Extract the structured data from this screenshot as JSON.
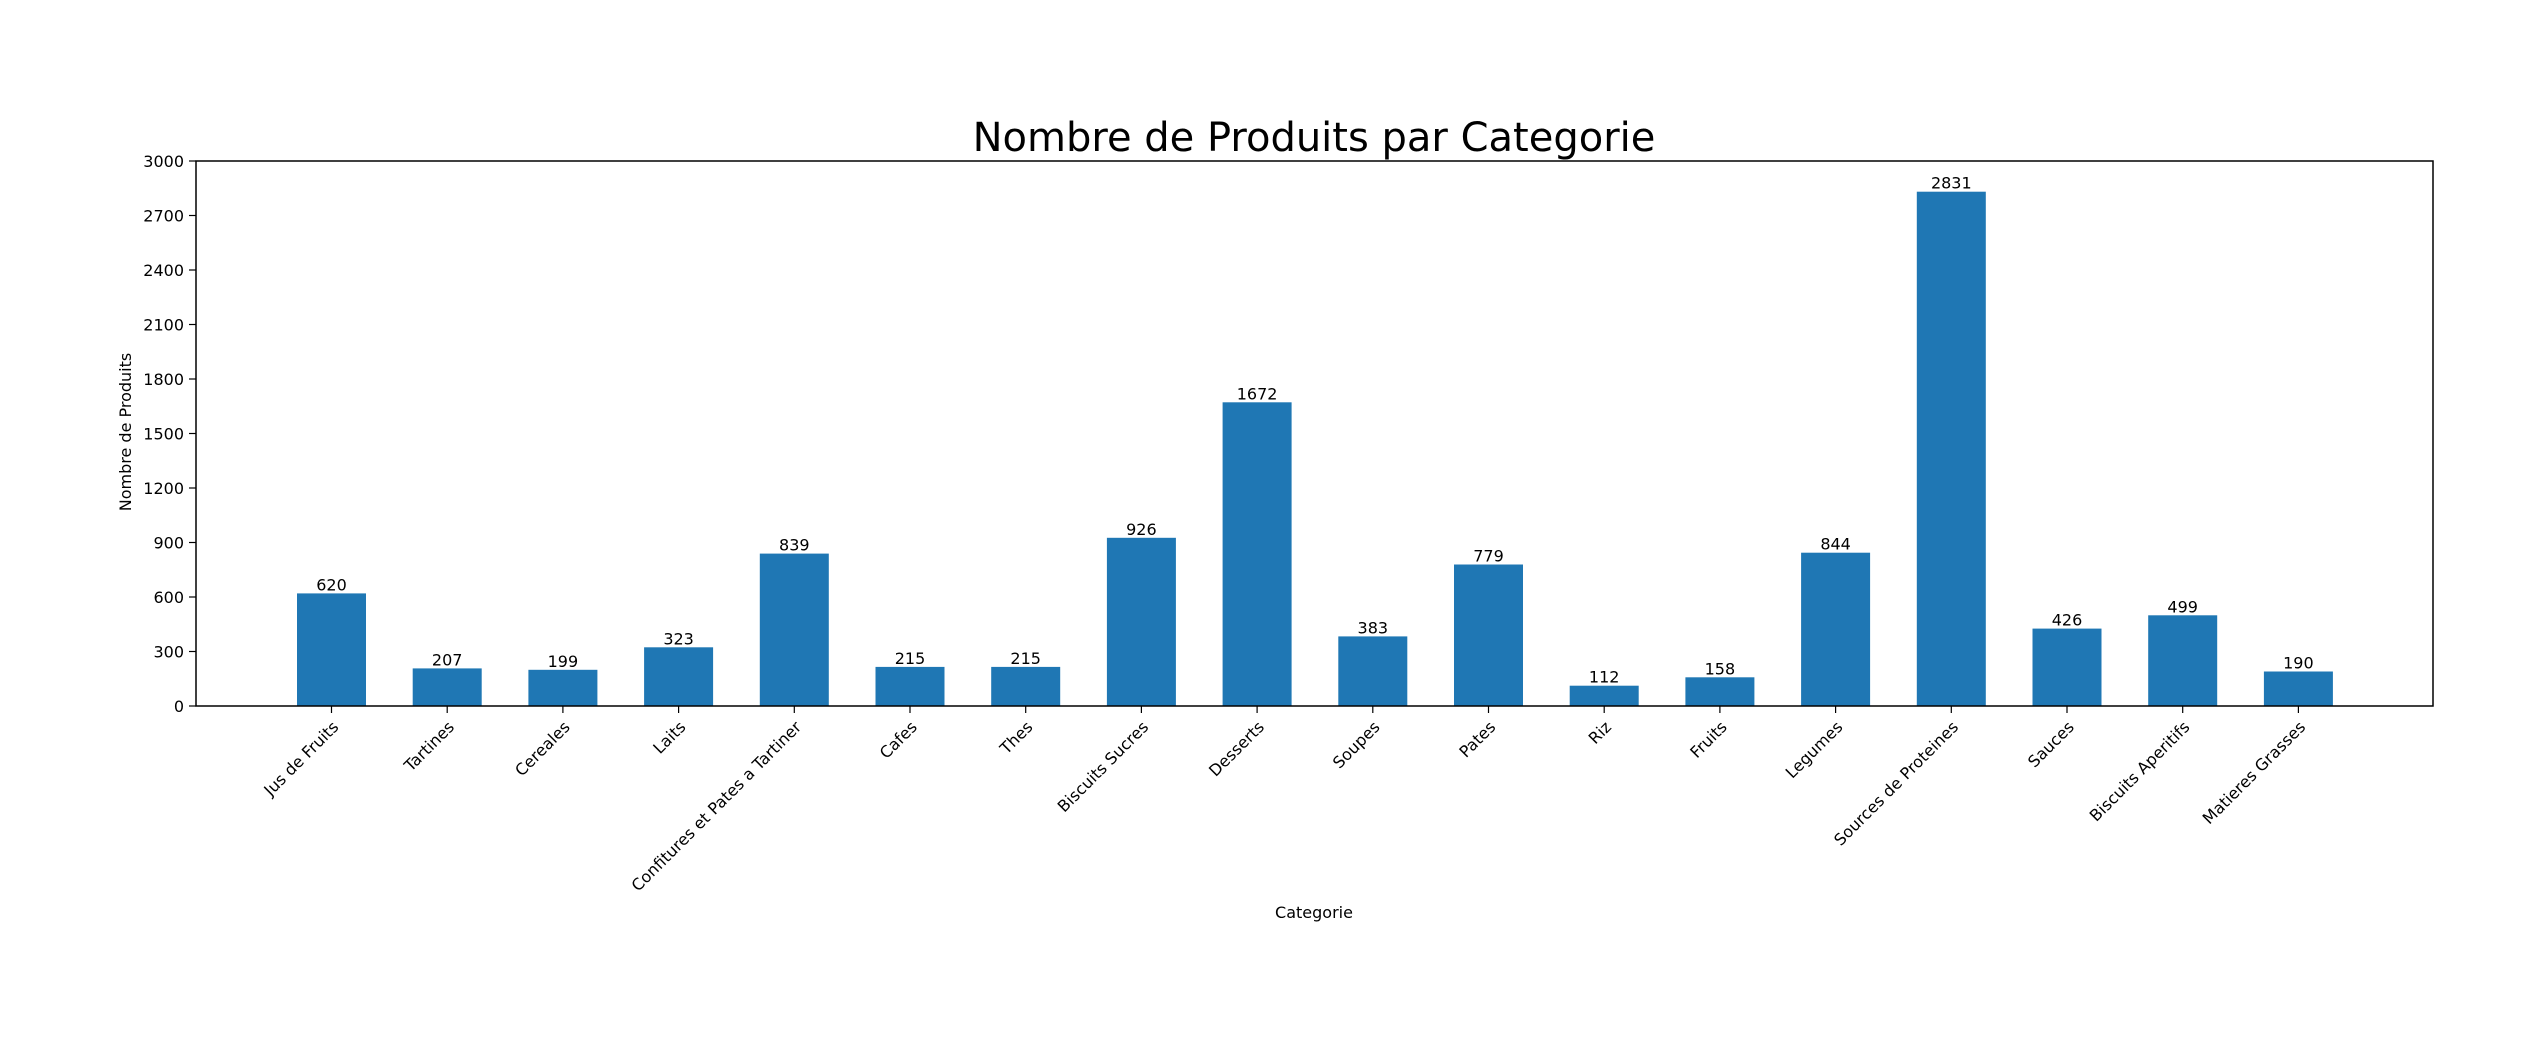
{
  "chart_data": {
    "type": "bar",
    "title": "Nombre de Produits par Categorie",
    "xlabel": "Categorie",
    "ylabel": "Nombre de Produits",
    "ylim": [
      0,
      3000
    ],
    "yticks": [
      0,
      300,
      600,
      900,
      1200,
      1500,
      1800,
      2100,
      2400,
      2700,
      3000
    ],
    "grid": false,
    "bar_color": "#1f77b4",
    "categories": [
      "Jus de Fruits",
      "Tartines",
      "Cereales",
      "Laits",
      "Confitures et Pates a Tartiner",
      "Cafes",
      "Thes",
      "Biscuits Sucres",
      "Desserts",
      "Soupes",
      "Pates",
      "Riz",
      "Fruits",
      "Legumes",
      "Sources de Proteines",
      "Sauces",
      "Biscuits Aperitifs",
      "Matieres Grasses"
    ],
    "values": [
      620,
      207,
      199,
      323,
      839,
      215,
      215,
      926,
      1672,
      383,
      779,
      112,
      158,
      844,
      2831,
      426,
      499,
      190
    ],
    "value_labels": [
      "620",
      "207",
      "199",
      "323",
      "839",
      "215",
      "215",
      "926",
      "1672",
      "383",
      "779",
      "112",
      "158",
      "844",
      "2831",
      "426",
      "499",
      "190"
    ],
    "ytick_labels": [
      "0",
      "300",
      "600",
      "900",
      "1200",
      "1500",
      "1800",
      "2100",
      "2400",
      "2700",
      "3000"
    ]
  }
}
